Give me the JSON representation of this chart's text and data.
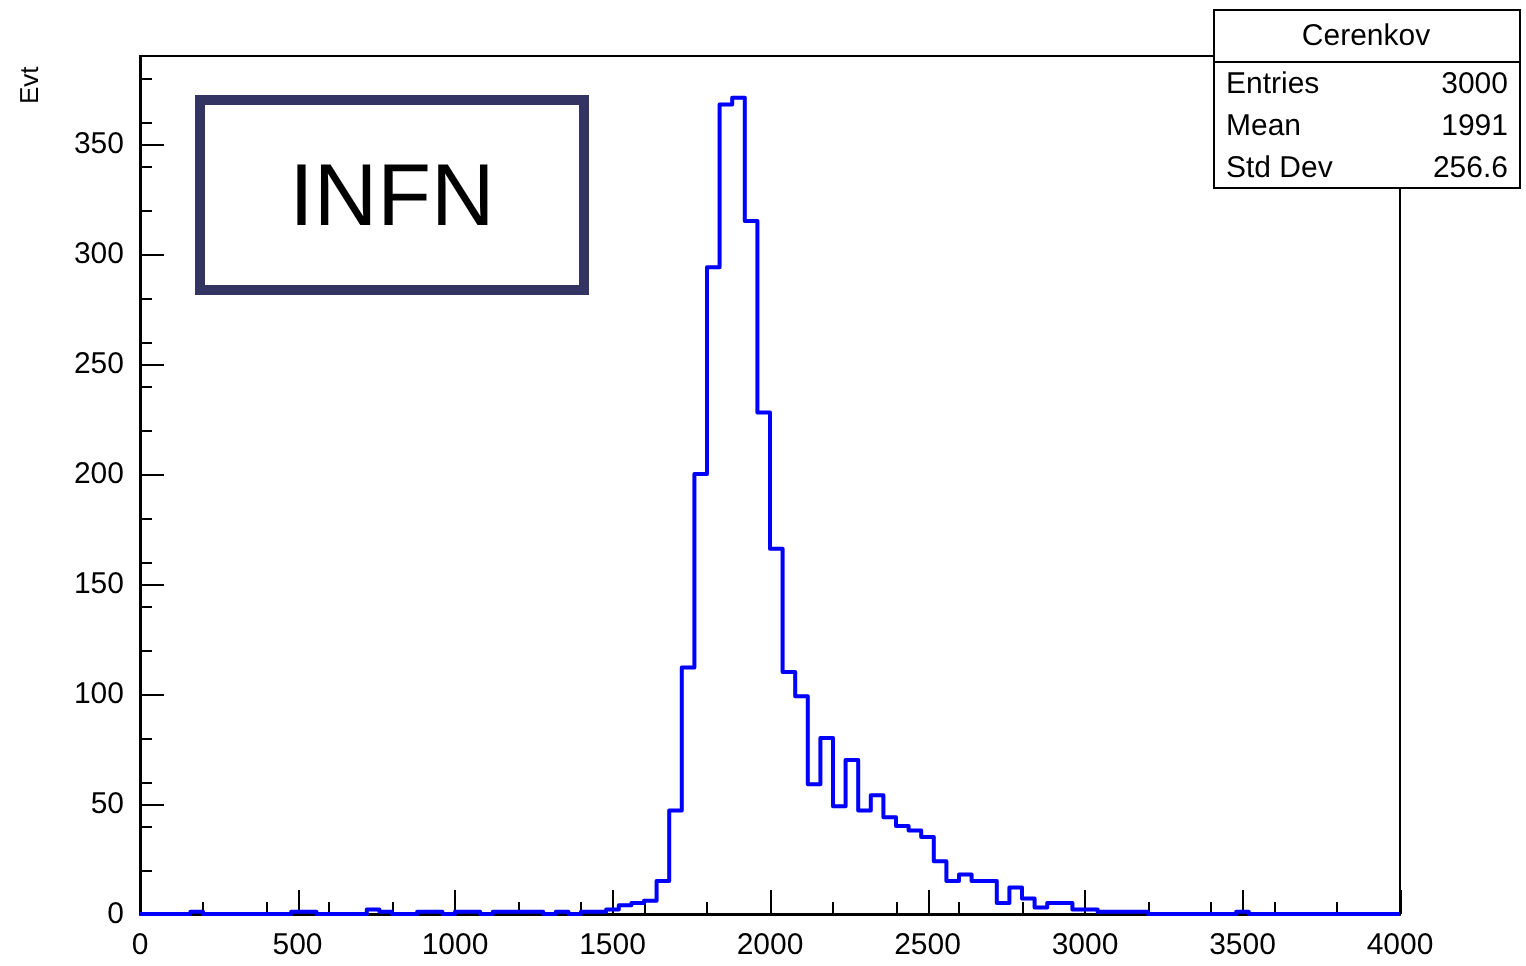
{
  "chart_data": {
    "type": "histogram",
    "ylabel": "Evt",
    "bins": [
      0,
      40,
      80,
      120,
      160,
      200,
      240,
      280,
      320,
      360,
      400,
      440,
      480,
      520,
      560,
      600,
      640,
      680,
      720,
      760,
      800,
      840,
      880,
      920,
      960,
      1000,
      1040,
      1080,
      1120,
      1160,
      1200,
      1240,
      1280,
      1320,
      1360,
      1400,
      1440,
      1480,
      1520,
      1560,
      1600,
      1640,
      1680,
      1720,
      1760,
      1800,
      1840,
      1880,
      1920,
      1960,
      2000,
      2040,
      2080,
      2120,
      2160,
      2200,
      2240,
      2280,
      2320,
      2360,
      2400,
      2440,
      2480,
      2520,
      2560,
      2600,
      2640,
      2680,
      2720,
      2760,
      2800,
      2840,
      2880,
      2920,
      2960,
      3000,
      3040,
      3080,
      3120,
      3160,
      3200,
      3240,
      3280,
      3320,
      3360,
      3400,
      3440,
      3480,
      3520,
      3560,
      3600,
      3640,
      3680,
      3720,
      3760,
      3800,
      3840,
      3880,
      3920,
      3960,
      4000
    ],
    "values": [
      0,
      0,
      0,
      0,
      1,
      0,
      0,
      0,
      0,
      0,
      0,
      0,
      1,
      1,
      0,
      0,
      0,
      0,
      2,
      1,
      0,
      0,
      1,
      1,
      0,
      1,
      1,
      0,
      1,
      1,
      1,
      1,
      0,
      1,
      0,
      1,
      1,
      2,
      4,
      5,
      6,
      15,
      47,
      112,
      200,
      294,
      368,
      371,
      315,
      228,
      166,
      110,
      99,
      59,
      80,
      49,
      70,
      47,
      54,
      44,
      40,
      38,
      35,
      24,
      15,
      18,
      15,
      15,
      5,
      12,
      7,
      3,
      5,
      5,
      2,
      2,
      1,
      1,
      1,
      1,
      0,
      0,
      0,
      0,
      0,
      0,
      0,
      1,
      0,
      0,
      0,
      0,
      0,
      0,
      0,
      0,
      0,
      0,
      0,
      0
    ],
    "color": "#0000ff",
    "xlim": [
      0,
      4000
    ],
    "xticks": [
      0,
      500,
      1000,
      1500,
      2000,
      2500,
      3000,
      3500,
      4000
    ],
    "ylim": [
      0,
      390
    ],
    "yticks": [
      0,
      50,
      100,
      150,
      200,
      250,
      300,
      350
    ],
    "grid": false,
    "annotations": [
      "INFN",
      "Cerenkov",
      "Entries",
      "3000",
      "Mean",
      "1991",
      "Std Dev",
      "256.6"
    ]
  }
}
